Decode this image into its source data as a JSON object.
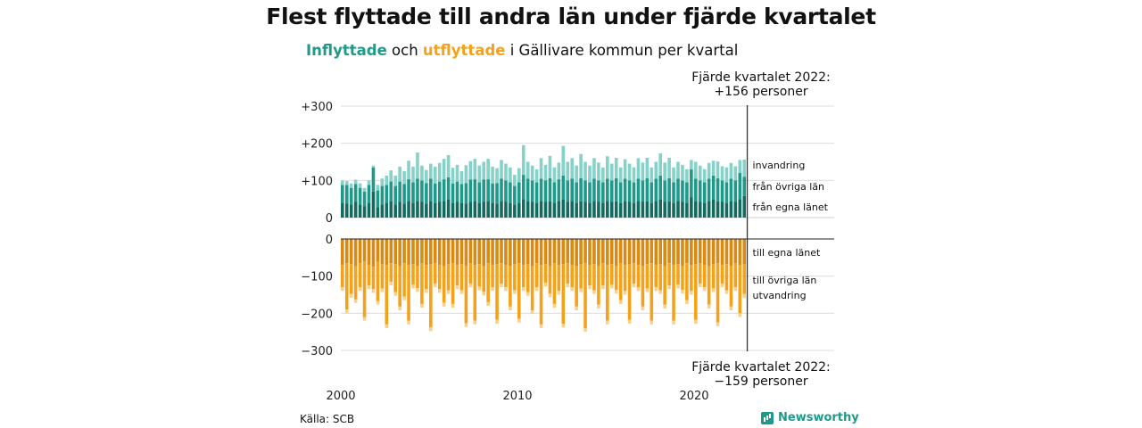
{
  "title": "Flest flyttade till andra län under fjärde kvartalet",
  "subtitle": {
    "in_label": "Inflyttade",
    "and": "och",
    "out_label": "utflyttade",
    "rest": "i Gällivare kommun per kvartal"
  },
  "annotation_top": {
    "line1": "Fjärde kvartalet 2022:",
    "line2": "+156 personer"
  },
  "annotation_bottom": {
    "line1": "Fjärde kvartalet 2022:",
    "line2": "−159 personer"
  },
  "source": "Källa: SCB",
  "brand": "Newsworthy",
  "chart_data": {
    "type": "bar",
    "stacked": true,
    "x_start": "2000 Q1",
    "x_end": "2022 Q4",
    "x_ticks": [
      2000,
      2010,
      2020
    ],
    "y_ticks_top": [
      "+300",
      "+200",
      "+100",
      "0"
    ],
    "y_ticks_bottom": [
      "0",
      "−100",
      "−200",
      "−300"
    ],
    "ylim_top": [
      0,
      300
    ],
    "ylim_bottom": [
      -300,
      0
    ],
    "grid": true,
    "colors": {
      "in_egna": "#136b5f",
      "in_ovriga": "#1f9a8a",
      "in_invandring": "#86d2c8",
      "out_egna": "#d98a14",
      "out_ovriga": "#f5a21b",
      "out_utvandring": "#fbd08a"
    },
    "series_in": [
      {
        "name": "från egna länet",
        "values": [
          40,
          38,
          35,
          42,
          35,
          30,
          40,
          70,
          28,
          35,
          40,
          45,
          35,
          42,
          38,
          45,
          40,
          45,
          42,
          38,
          45,
          40,
          42,
          45,
          48,
          40,
          42,
          40,
          38,
          42,
          45,
          40,
          42,
          45,
          40,
          38,
          45,
          42,
          40,
          35,
          40,
          50,
          45,
          42,
          40,
          45,
          42,
          44,
          40,
          45,
          48,
          42,
          45,
          40,
          44,
          42,
          40,
          45,
          42,
          40,
          45,
          42,
          44,
          40,
          45,
          42,
          40,
          45,
          42,
          44,
          40,
          45,
          48,
          42,
          44,
          40,
          45,
          42,
          40,
          55,
          45,
          42,
          40,
          45,
          48,
          44,
          42,
          40,
          45,
          42,
          50,
          58
        ]
      },
      {
        "name": "från övriga län",
        "values": [
          48,
          50,
          45,
          48,
          45,
          40,
          48,
          65,
          45,
          50,
          48,
          52,
          50,
          55,
          52,
          58,
          55,
          60,
          58,
          55,
          60,
          52,
          55,
          58,
          60,
          52,
          55,
          50,
          55,
          60,
          58,
          55,
          60,
          58,
          52,
          55,
          60,
          58,
          55,
          50,
          55,
          65,
          60,
          58,
          55,
          60,
          58,
          62,
          55,
          58,
          65,
          58,
          60,
          55,
          62,
          58,
          55,
          60,
          58,
          55,
          60,
          58,
          62,
          55,
          60,
          58,
          55,
          60,
          58,
          62,
          55,
          60,
          65,
          58,
          62,
          55,
          60,
          58,
          55,
          75,
          60,
          58,
          55,
          60,
          65,
          62,
          58,
          55,
          60,
          58,
          70,
          52
        ]
      },
      {
        "name": "invandring",
        "values": [
          12,
          10,
          12,
          12,
          12,
          10,
          12,
          5,
          15,
          20,
          25,
          30,
          28,
          40,
          35,
          50,
          42,
          70,
          40,
          35,
          40,
          45,
          50,
          55,
          60,
          42,
          45,
          35,
          48,
          50,
          55,
          45,
          48,
          55,
          45,
          40,
          50,
          45,
          40,
          30,
          38,
          80,
          45,
          40,
          35,
          55,
          42,
          60,
          40,
          45,
          80,
          50,
          55,
          45,
          65,
          50,
          45,
          55,
          48,
          40,
          60,
          45,
          55,
          40,
          52,
          45,
          40,
          55,
          48,
          55,
          40,
          45,
          60,
          48,
          55,
          40,
          45,
          42,
          35,
          25,
          45,
          40,
          35,
          42,
          40,
          45,
          38,
          40,
          42,
          38,
          35,
          46
        ]
      }
    ],
    "series_out": [
      {
        "name": "till egna länet",
        "values": [
          70,
          65,
          68,
          72,
          65,
          60,
          70,
          75,
          62,
          68,
          70,
          65,
          68,
          72,
          65,
          70,
          68,
          72,
          65,
          70,
          68,
          65,
          70,
          72,
          68,
          65,
          70,
          68,
          72,
          65,
          70,
          68,
          72,
          65,
          70,
          68,
          65,
          70,
          72,
          68,
          65,
          70,
          68,
          72,
          65,
          70,
          68,
          72,
          65,
          70,
          68,
          65,
          70,
          72,
          68,
          65,
          70,
          68,
          72,
          65,
          70,
          68,
          72,
          65,
          70,
          68,
          65,
          70,
          72,
          68,
          65,
          70,
          68,
          72,
          65,
          70,
          68,
          72,
          65,
          70,
          68,
          65,
          70,
          72,
          68,
          65,
          70,
          68,
          72,
          65,
          70,
          68
        ]
      },
      {
        "name": "till övriga län",
        "values": [
          60,
          125,
          80,
          90,
          65,
          150,
          55,
          60,
          105,
          65,
          160,
          50,
          75,
          110,
          90,
          150,
          55,
          60,
          110,
          65,
          170,
          55,
          65,
          100,
          70,
          110,
          55,
          70,
          155,
          55,
          150,
          60,
          70,
          105,
          60,
          150,
          55,
          60,
          110,
          70,
          150,
          60,
          75,
          120,
          65,
          160,
          50,
          75,
          110,
          70,
          160,
          55,
          60,
          110,
          65,
          175,
          55,
          70,
          105,
          60,
          150,
          55,
          65,
          100,
          70,
          150,
          55,
          60,
          110,
          65,
          155,
          60,
          70,
          105,
          60,
          150,
          55,
          65,
          100,
          70,
          150,
          55,
          60,
          105,
          65,
          160,
          50,
          70,
          110,
          65,
          130,
          80
        ]
      },
      {
        "name": "utvandring",
        "values": [
          10,
          10,
          10,
          10,
          10,
          10,
          10,
          10,
          10,
          10,
          10,
          10,
          10,
          10,
          10,
          10,
          10,
          10,
          10,
          10,
          10,
          10,
          10,
          10,
          10,
          10,
          10,
          10,
          10,
          10,
          10,
          10,
          10,
          10,
          10,
          10,
          10,
          10,
          10,
          10,
          10,
          10,
          10,
          10,
          10,
          10,
          10,
          10,
          10,
          10,
          10,
          10,
          10,
          10,
          10,
          10,
          10,
          10,
          10,
          10,
          10,
          10,
          10,
          10,
          10,
          10,
          10,
          10,
          10,
          10,
          10,
          10,
          10,
          10,
          10,
          10,
          10,
          10,
          10,
          10,
          10,
          10,
          10,
          10,
          10,
          10,
          10,
          10,
          10,
          10,
          10,
          11
        ]
      }
    ]
  }
}
